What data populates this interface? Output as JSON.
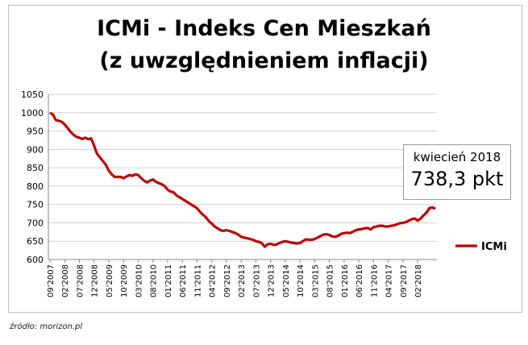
{
  "chart_data": {
    "type": "line",
    "title": "ICMi - Indeks Cen Mieszkań",
    "subtitle": "(z uwzględnieniem inflacji)",
    "ylim": [
      600,
      1050
    ],
    "yticks": [
      600,
      650,
      700,
      750,
      800,
      850,
      900,
      950,
      1000,
      1050
    ],
    "grid": true,
    "legend_placement": "right",
    "color": "#c00000",
    "xtick_labels": [
      "09'2007",
      "02'2008",
      "07'2008",
      "12'2008",
      "05'2009",
      "10'2009",
      "03'2010",
      "08'2010",
      "01'2011",
      "06'2011",
      "11'2011",
      "04'2012",
      "09'2012",
      "02'2013",
      "07'2013",
      "12'2013",
      "05'2014",
      "10'2014",
      "03'2015",
      "08'2015",
      "01'2016",
      "06'2016",
      "11'2016",
      "04'2017",
      "09'2017",
      "02'2018"
    ],
    "series": [
      {
        "name": "ICMi",
        "values": [
          1000,
          995,
          980,
          978,
          975,
          968,
          958,
          948,
          940,
          934,
          932,
          928,
          932,
          928,
          930,
          910,
          888,
          878,
          868,
          858,
          842,
          832,
          825,
          825,
          825,
          822,
          826,
          830,
          828,
          832,
          830,
          822,
          815,
          810,
          815,
          818,
          812,
          808,
          805,
          800,
          790,
          785,
          783,
          775,
          770,
          765,
          760,
          755,
          750,
          745,
          740,
          730,
          722,
          715,
          705,
          698,
          690,
          685,
          680,
          678,
          680,
          678,
          675,
          672,
          668,
          662,
          660,
          658,
          656,
          654,
          650,
          648,
          645,
          635,
          642,
          643,
          640,
          641,
          645,
          648,
          650,
          648,
          646,
          645,
          644,
          645,
          650,
          655,
          654,
          654,
          656,
          660,
          664,
          668,
          669,
          667,
          663,
          662,
          665,
          670,
          672,
          673,
          672,
          676,
          680,
          682,
          683,
          685,
          686,
          682,
          688,
          690,
          692,
          692,
          690,
          690,
          692,
          693,
          696,
          699,
          700,
          702,
          706,
          710,
          712,
          706,
          712,
          720,
          728,
          740,
          742,
          738.3
        ]
      }
    ],
    "callout": {
      "date": "kwiecień 2018",
      "value": "738,3 pkt"
    }
  },
  "source": "źródło: morizon.pl"
}
